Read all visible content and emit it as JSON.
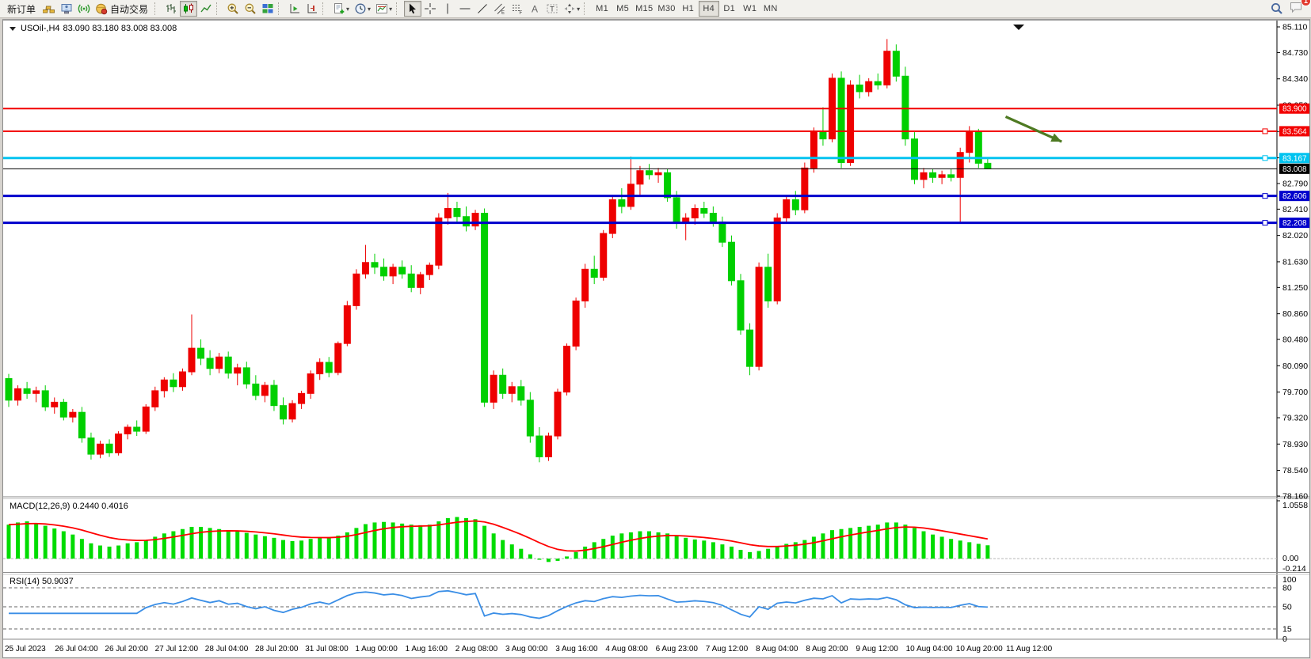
{
  "toolbar": {
    "new_order_label": "新订单",
    "auto_trading_label": "自动交易",
    "timeframes": [
      "M1",
      "M5",
      "M15",
      "M30",
      "H1",
      "H4",
      "D1",
      "W1",
      "MN"
    ],
    "active_timeframe": "H4",
    "chat_badge": "1"
  },
  "quote": {
    "symbol_tf": "USOil-,H4",
    "ohlc": "83.090 83.180 83.008 83.008"
  },
  "indicators": {
    "macd_label": "MACD(12,26,9) 0.2440 0.4016",
    "rsi_label": "RSI(14) 50.9037",
    "macd_axis": [
      "1.0558",
      "0.00",
      "-0.214"
    ],
    "rsi_axis": [
      "100",
      "80",
      "50",
      "15",
      "0"
    ]
  },
  "chart_data": {
    "type": "candlestick",
    "symbol": "USOil",
    "timeframe": "H4",
    "price_axis": {
      "max": 85.11,
      "min": 78.16,
      "ticks": [
        "85.110",
        "84.730",
        "84.340",
        "83.950",
        "83.560",
        "83.170",
        "82.790",
        "82.410",
        "82.020",
        "81.630",
        "81.250",
        "80.860",
        "80.480",
        "80.090",
        "79.700",
        "79.320",
        "78.930",
        "78.540",
        "78.160"
      ]
    },
    "levels": [
      {
        "price": 83.9,
        "label": "83.900",
        "color": "#f20000",
        "width": 2,
        "marker": false
      },
      {
        "price": 83.564,
        "label": "83.564",
        "color": "#f20000",
        "width": 2,
        "marker": true
      },
      {
        "price": 83.167,
        "label": "83.167",
        "color": "#00c3f0",
        "width": 3,
        "marker": true
      },
      {
        "price": 82.606,
        "label": "82.606",
        "color": "#0000cc",
        "width": 3,
        "marker": true
      },
      {
        "price": 82.208,
        "label": "82.208",
        "color": "#0000cc",
        "width": 3,
        "marker": true
      }
    ],
    "bid_line": {
      "price": 83.008,
      "label": "83.008",
      "color": "#000000"
    },
    "ohlc": [
      [
        79.9,
        79.97,
        79.48,
        79.58
      ],
      [
        79.58,
        79.8,
        79.5,
        79.75
      ],
      [
        79.75,
        79.85,
        79.6,
        79.68
      ],
      [
        79.68,
        79.78,
        79.55,
        79.72
      ],
      [
        79.72,
        79.8,
        79.42,
        79.48
      ],
      [
        79.48,
        79.62,
        79.38,
        79.55
      ],
      [
        79.55,
        79.6,
        79.28,
        79.33
      ],
      [
        79.33,
        79.45,
        79.25,
        79.4
      ],
      [
        79.4,
        79.48,
        78.95,
        79.02
      ],
      [
        79.02,
        79.1,
        78.7,
        78.78
      ],
      [
        78.78,
        78.98,
        78.72,
        78.93
      ],
      [
        78.93,
        79.0,
        78.74,
        78.8
      ],
      [
        78.8,
        79.12,
        78.76,
        79.08
      ],
      [
        79.08,
        79.22,
        79.0,
        79.18
      ],
      [
        79.18,
        79.28,
        79.05,
        79.12
      ],
      [
        79.12,
        79.52,
        79.08,
        79.48
      ],
      [
        79.48,
        79.78,
        79.42,
        79.72
      ],
      [
        79.72,
        79.92,
        79.62,
        79.88
      ],
      [
        79.88,
        79.98,
        79.7,
        79.78
      ],
      [
        79.78,
        80.05,
        79.72,
        80.0
      ],
      [
        80.0,
        80.85,
        79.95,
        80.35
      ],
      [
        80.35,
        80.48,
        80.1,
        80.2
      ],
      [
        80.2,
        80.32,
        79.95,
        80.05
      ],
      [
        80.05,
        80.28,
        79.98,
        80.22
      ],
      [
        80.22,
        80.3,
        79.9,
        79.98
      ],
      [
        79.98,
        80.12,
        79.8,
        80.06
      ],
      [
        80.06,
        80.15,
        79.75,
        79.82
      ],
      [
        79.82,
        79.95,
        79.58,
        79.65
      ],
      [
        79.65,
        79.85,
        79.55,
        79.8
      ],
      [
        79.8,
        79.88,
        79.42,
        79.5
      ],
      [
        79.5,
        79.62,
        79.22,
        79.3
      ],
      [
        79.3,
        79.58,
        79.25,
        79.53
      ],
      [
        79.53,
        79.72,
        79.45,
        79.68
      ],
      [
        79.68,
        80.02,
        79.6,
        79.97
      ],
      [
        79.97,
        80.2,
        79.88,
        80.14
      ],
      [
        80.14,
        80.22,
        79.92,
        79.99
      ],
      [
        79.99,
        80.45,
        79.95,
        80.42
      ],
      [
        80.42,
        81.05,
        80.38,
        80.98
      ],
      [
        80.98,
        81.52,
        80.92,
        81.45
      ],
      [
        81.45,
        81.88,
        81.38,
        81.62
      ],
      [
        81.62,
        81.75,
        81.45,
        81.55
      ],
      [
        81.55,
        81.68,
        81.35,
        81.42
      ],
      [
        81.42,
        81.6,
        81.3,
        81.55
      ],
      [
        81.55,
        81.65,
        81.38,
        81.45
      ],
      [
        81.45,
        81.58,
        81.18,
        81.25
      ],
      [
        81.25,
        81.48,
        81.15,
        81.44
      ],
      [
        81.44,
        81.62,
        81.36,
        81.58
      ],
      [
        81.58,
        82.35,
        81.52,
        82.28
      ],
      [
        82.28,
        82.65,
        82.18,
        82.42
      ],
      [
        82.42,
        82.52,
        82.22,
        82.3
      ],
      [
        82.3,
        82.45,
        82.08,
        82.16
      ],
      [
        82.16,
        82.4,
        82.1,
        82.35
      ],
      [
        82.35,
        82.42,
        79.48,
        79.55
      ],
      [
        79.55,
        80.02,
        79.45,
        79.95
      ],
      [
        79.95,
        80.05,
        79.6,
        79.68
      ],
      [
        79.68,
        79.85,
        79.55,
        79.78
      ],
      [
        79.78,
        79.88,
        79.5,
        79.58
      ],
      [
        79.58,
        79.7,
        78.95,
        79.05
      ],
      [
        79.05,
        79.18,
        78.66,
        78.74
      ],
      [
        78.74,
        79.1,
        78.68,
        79.05
      ],
      [
        79.05,
        79.75,
        79.0,
        79.7
      ],
      [
        79.7,
        80.42,
        79.65,
        80.38
      ],
      [
        80.38,
        81.1,
        80.32,
        81.05
      ],
      [
        81.05,
        81.6,
        80.95,
        81.52
      ],
      [
        81.52,
        81.72,
        81.3,
        81.4
      ],
      [
        81.4,
        82.1,
        81.35,
        82.05
      ],
      [
        82.05,
        82.62,
        81.98,
        82.55
      ],
      [
        82.55,
        82.72,
        82.35,
        82.45
      ],
      [
        82.45,
        83.19,
        82.4,
        82.78
      ],
      [
        82.78,
        83.05,
        82.62,
        82.98
      ],
      [
        82.98,
        83.08,
        82.85,
        82.92
      ],
      [
        82.92,
        83.02,
        82.8,
        82.95
      ],
      [
        82.95,
        83.0,
        82.52,
        82.58
      ],
      [
        82.58,
        82.68,
        82.12,
        82.2
      ],
      [
        82.2,
        82.35,
        81.95,
        82.28
      ],
      [
        82.28,
        82.48,
        82.18,
        82.42
      ],
      [
        82.42,
        82.52,
        82.28,
        82.35
      ],
      [
        82.35,
        82.45,
        82.15,
        82.22
      ],
      [
        82.22,
        82.3,
        81.85,
        81.92
      ],
      [
        81.92,
        82.02,
        81.28,
        81.35
      ],
      [
        81.35,
        81.45,
        80.55,
        80.62
      ],
      [
        80.62,
        80.72,
        79.95,
        80.08
      ],
      [
        80.08,
        81.62,
        80.02,
        81.55
      ],
      [
        81.55,
        81.75,
        80.95,
        81.05
      ],
      [
        81.05,
        82.35,
        81.0,
        82.28
      ],
      [
        82.28,
        82.62,
        82.2,
        82.55
      ],
      [
        82.55,
        82.68,
        82.32,
        82.4
      ],
      [
        82.4,
        83.1,
        82.35,
        83.02
      ],
      [
        83.02,
        83.62,
        82.95,
        83.55
      ],
      [
        83.55,
        83.92,
        83.35,
        83.45
      ],
      [
        83.45,
        84.42,
        83.4,
        84.35
      ],
      [
        84.35,
        84.45,
        83.02,
        83.1
      ],
      [
        83.1,
        84.32,
        83.05,
        84.25
      ],
      [
        84.25,
        84.4,
        84.05,
        84.15
      ],
      [
        84.15,
        84.35,
        84.08,
        84.3
      ],
      [
        84.3,
        84.42,
        84.18,
        84.25
      ],
      [
        84.25,
        84.93,
        84.2,
        84.75
      ],
      [
        84.75,
        84.85,
        84.3,
        84.38
      ],
      [
        84.38,
        84.52,
        83.35,
        83.45
      ],
      [
        83.45,
        83.55,
        82.78,
        82.85
      ],
      [
        82.85,
        83.02,
        82.72,
        82.95
      ],
      [
        82.95,
        83.0,
        82.8,
        82.88
      ],
      [
        82.88,
        82.98,
        82.78,
        82.92
      ],
      [
        82.92,
        83.0,
        82.82,
        82.88
      ],
      [
        82.88,
        83.32,
        82.2,
        83.25
      ],
      [
        83.25,
        83.64,
        83.1,
        83.55
      ],
      [
        83.55,
        83.6,
        83.02,
        83.09
      ],
      [
        83.09,
        83.18,
        83.008,
        83.008
      ]
    ],
    "time_labels": [
      "25 Jul 2023",
      "26 Jul 04:00",
      "26 Jul 20:00",
      "27 Jul 12:00",
      "28 Jul 04:00",
      "28 Jul 20:00",
      "31 Jul 08:00",
      "1 Aug 00:00",
      "1 Aug 16:00",
      "2 Aug 08:00",
      "3 Aug 00:00",
      "3 Aug 16:00",
      "4 Aug 08:00",
      "6 Aug 23:00",
      "7 Aug 12:00",
      "8 Aug 04:00",
      "8 Aug 20:00",
      "9 Aug 12:00",
      "10 Aug 04:00",
      "10 Aug 20:00",
      "11 Aug 12:00"
    ],
    "macd": {
      "params": "12,26,9",
      "axis_max": 1.0558,
      "axis_min": -0.214,
      "signal_ema_period": 9,
      "values": [
        0.62,
        0.66,
        0.68,
        0.65,
        0.6,
        0.55,
        0.5,
        0.44,
        0.36,
        0.28,
        0.24,
        0.22,
        0.24,
        0.28,
        0.3,
        0.34,
        0.4,
        0.46,
        0.5,
        0.54,
        0.58,
        0.58,
        0.56,
        0.54,
        0.52,
        0.5,
        0.47,
        0.44,
        0.41,
        0.38,
        0.34,
        0.32,
        0.33,
        0.36,
        0.38,
        0.38,
        0.42,
        0.48,
        0.56,
        0.63,
        0.66,
        0.67,
        0.66,
        0.64,
        0.62,
        0.61,
        0.62,
        0.68,
        0.74,
        0.76,
        0.74,
        0.72,
        0.6,
        0.46,
        0.34,
        0.26,
        0.18,
        0.08,
        -0.02,
        -0.06,
        -0.04,
        0.04,
        0.12,
        0.22,
        0.3,
        0.36,
        0.42,
        0.46,
        0.48,
        0.5,
        0.5,
        0.48,
        0.46,
        0.42,
        0.38,
        0.35,
        0.33,
        0.3,
        0.26,
        0.22,
        0.16,
        0.12,
        0.14,
        0.18,
        0.22,
        0.27,
        0.3,
        0.34,
        0.4,
        0.46,
        0.52,
        0.54,
        0.56,
        0.58,
        0.6,
        0.62,
        0.66,
        0.66,
        0.62,
        0.56,
        0.5,
        0.44,
        0.4,
        0.36,
        0.33,
        0.3,
        0.27,
        0.244
      ]
    },
    "rsi": {
      "period": 14,
      "value": 50.9037,
      "levels": [
        80,
        50,
        15
      ]
    },
    "annotation_arrow": {
      "from_x_frac": 0.787,
      "from_price": 83.78,
      "to_x_frac": 0.831,
      "to_price": 83.41,
      "color": "#4e7a22"
    },
    "colors": {
      "up": "#ee0000",
      "down": "#00cf00",
      "macd_hist": "#00dc00",
      "macd_signal": "#ff0000",
      "rsi_line": "#3a8ee6"
    }
  }
}
